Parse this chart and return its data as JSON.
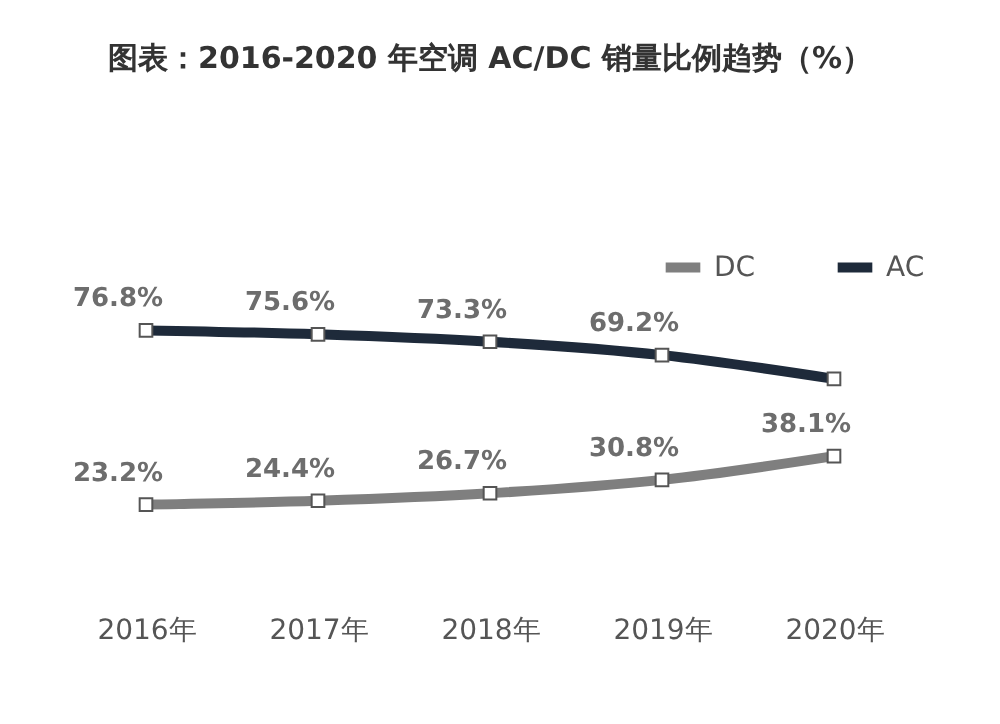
{
  "chart_data": {
    "type": "line",
    "title": "图表：2016-2020 年空调 AC/DC 销量比例趋势（%）",
    "categories": [
      "2016年",
      "2017年",
      "2018年",
      "2019年",
      "2020年"
    ],
    "series": [
      {
        "name": "DC",
        "color": "#7f7f7f",
        "values": [
          23.2,
          24.4,
          26.7,
          30.8,
          38.1
        ],
        "value_labels": [
          "23.2%",
          "24.4%",
          "26.7%",
          "30.8%",
          "38.1%"
        ]
      },
      {
        "name": "AC",
        "color": "#1e2a3a",
        "values": [
          76.8,
          75.6,
          73.3,
          69.2,
          61.9
        ],
        "value_labels": [
          "76.8%",
          "75.6%",
          "73.3%",
          "69.2%",
          null
        ]
      }
    ],
    "legend": "top right",
    "marker": "square",
    "line_style": "solid",
    "grid": false
  }
}
